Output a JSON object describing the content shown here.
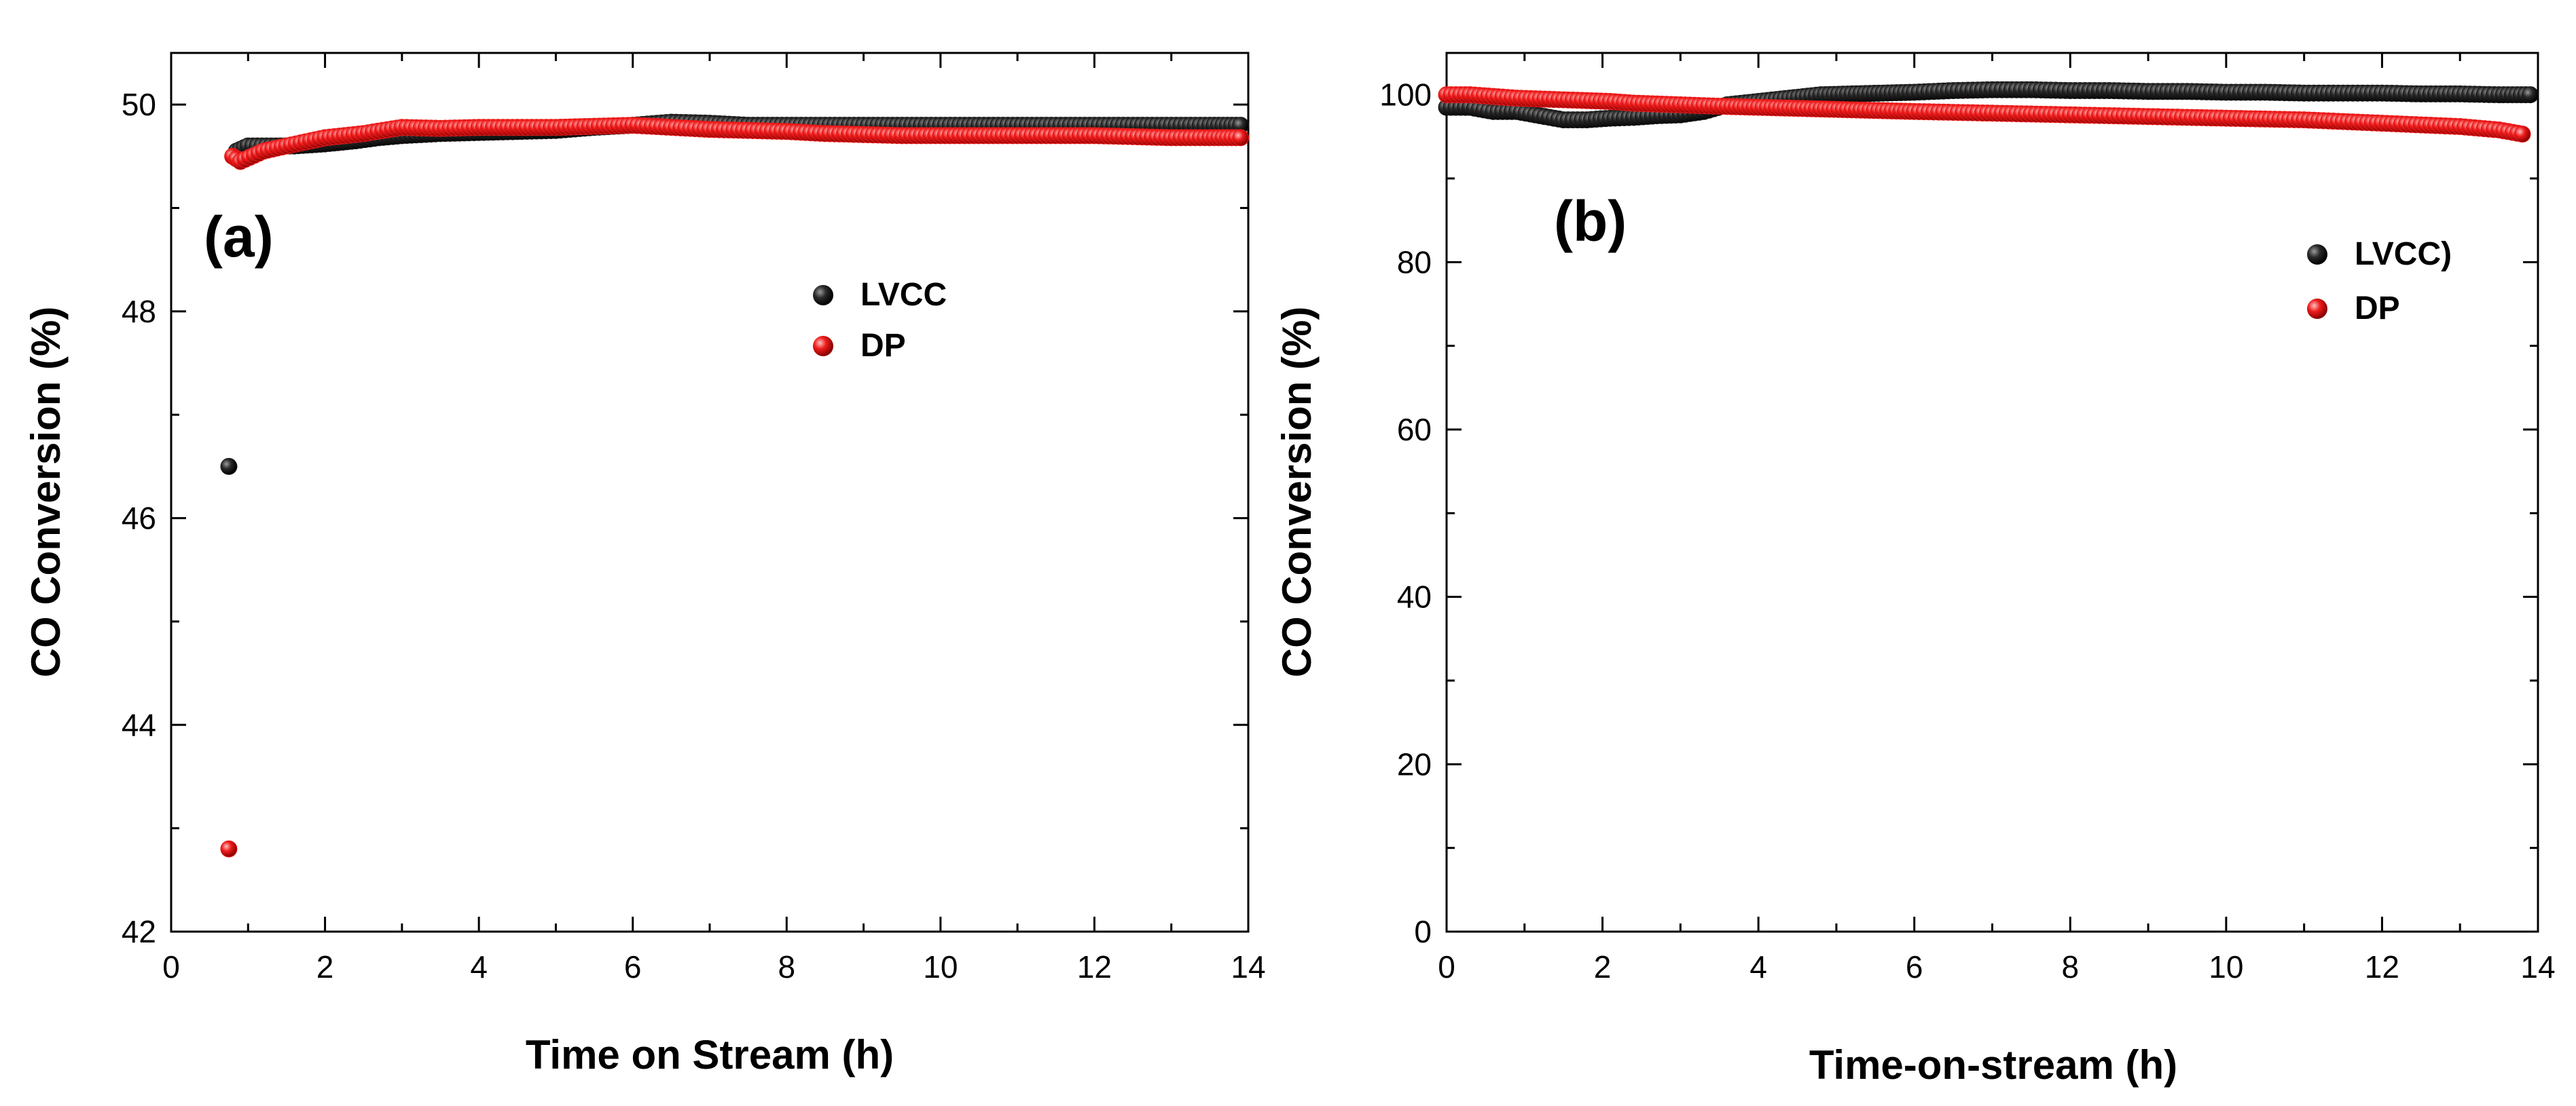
{
  "chart_data": [
    {
      "type": "scatter",
      "panel_label": "(a)",
      "xlabel": "Time on Stream (h)",
      "ylabel": "CO Conversion (%)",
      "xlim": [
        0,
        14
      ],
      "ylim": [
        42,
        50.5
      ],
      "x_ticks": [
        0,
        2,
        4,
        6,
        8,
        10,
        12,
        14
      ],
      "y_ticks": [
        42,
        44,
        46,
        48,
        50
      ],
      "legend": [
        "LVCC",
        "DP"
      ],
      "legend_position": "upper-right-of-center",
      "series": [
        {
          "name": "LVCC",
          "color": "#1a1a1a",
          "points": [
            [
              0.75,
              46.5
            ],
            [
              0.85,
              49.55
            ],
            [
              1.0,
              49.6
            ],
            [
              1.3,
              49.6
            ],
            [
              1.6,
              49.6
            ],
            [
              2.0,
              49.62
            ],
            [
              2.4,
              49.65
            ],
            [
              2.7,
              49.68
            ],
            [
              3.0,
              49.7
            ],
            [
              3.5,
              49.72
            ],
            [
              4.0,
              49.73
            ],
            [
              4.5,
              49.74
            ],
            [
              5.0,
              49.75
            ],
            [
              5.5,
              49.78
            ],
            [
              6.0,
              49.8
            ],
            [
              6.5,
              49.83
            ],
            [
              7.0,
              49.82
            ],
            [
              7.5,
              49.8
            ],
            [
              8.0,
              49.8
            ],
            [
              8.5,
              49.8
            ],
            [
              9.0,
              49.8
            ],
            [
              9.5,
              49.8
            ],
            [
              10.0,
              49.8
            ],
            [
              10.5,
              49.8
            ],
            [
              11.0,
              49.8
            ],
            [
              11.5,
              49.8
            ],
            [
              12.0,
              49.8
            ],
            [
              12.5,
              49.8
            ],
            [
              13.0,
              49.8
            ],
            [
              13.5,
              49.8
            ],
            [
              13.9,
              49.8
            ]
          ]
        },
        {
          "name": "DP",
          "color": "#ee1c1c",
          "points": [
            [
              0.75,
              42.8
            ],
            [
              0.8,
              49.5
            ],
            [
              0.9,
              49.45
            ],
            [
              1.2,
              49.55
            ],
            [
              1.5,
              49.6
            ],
            [
              2.0,
              49.68
            ],
            [
              2.5,
              49.72
            ],
            [
              3.0,
              49.78
            ],
            [
              3.5,
              49.77
            ],
            [
              4.0,
              49.78
            ],
            [
              4.5,
              49.78
            ],
            [
              5.0,
              49.78
            ],
            [
              5.5,
              49.79
            ],
            [
              6.0,
              49.8
            ],
            [
              6.5,
              49.78
            ],
            [
              7.0,
              49.76
            ],
            [
              7.5,
              49.75
            ],
            [
              8.0,
              49.74
            ],
            [
              8.5,
              49.72
            ],
            [
              9.0,
              49.71
            ],
            [
              9.5,
              49.7
            ],
            [
              10.0,
              49.7
            ],
            [
              10.5,
              49.7
            ],
            [
              11.0,
              49.7
            ],
            [
              11.5,
              49.7
            ],
            [
              12.0,
              49.7
            ],
            [
              12.5,
              49.69
            ],
            [
              13.0,
              49.68
            ],
            [
              13.5,
              49.68
            ],
            [
              13.9,
              49.68
            ]
          ]
        }
      ]
    },
    {
      "type": "scatter",
      "panel_label": "(b)",
      "xlabel": "Time-on-stream (h)",
      "ylabel": "CO Conversion (%)",
      "xlim": [
        0,
        14
      ],
      "ylim": [
        0,
        105
      ],
      "x_ticks": [
        0,
        2,
        4,
        6,
        8,
        10,
        12,
        14
      ],
      "y_ticks": [
        0,
        20,
        40,
        60,
        80,
        100
      ],
      "legend": [
        "LVCC)",
        "DP"
      ],
      "legend_position": "upper-right",
      "series": [
        {
          "name": "LVCC)",
          "color": "#1a1a1a",
          "points": [
            [
              0.0,
              98.5
            ],
            [
              0.3,
              98.5
            ],
            [
              0.6,
              98.0
            ],
            [
              0.9,
              98.0
            ],
            [
              1.2,
              97.5
            ],
            [
              1.5,
              97.0
            ],
            [
              1.8,
              97.0
            ],
            [
              2.1,
              97.2
            ],
            [
              2.4,
              97.3
            ],
            [
              2.7,
              97.5
            ],
            [
              3.0,
              97.6
            ],
            [
              3.3,
              98.0
            ],
            [
              3.6,
              98.8
            ],
            [
              4.0,
              99.2
            ],
            [
              4.4,
              99.6
            ],
            [
              4.8,
              100.0
            ],
            [
              5.2,
              100.1
            ],
            [
              5.6,
              100.2
            ],
            [
              6.0,
              100.3
            ],
            [
              6.5,
              100.5
            ],
            [
              7.0,
              100.6
            ],
            [
              7.5,
              100.6
            ],
            [
              8.0,
              100.5
            ],
            [
              8.5,
              100.5
            ],
            [
              9.0,
              100.4
            ],
            [
              9.5,
              100.4
            ],
            [
              10.0,
              100.3
            ],
            [
              10.5,
              100.3
            ],
            [
              11.0,
              100.2
            ],
            [
              11.5,
              100.2
            ],
            [
              12.0,
              100.2
            ],
            [
              12.5,
              100.1
            ],
            [
              13.0,
              100.1
            ],
            [
              13.5,
              100.0
            ],
            [
              13.9,
              100.0
            ]
          ]
        },
        {
          "name": "DP",
          "color": "#ee1c1c",
          "points": [
            [
              0.0,
              100.0
            ],
            [
              0.3,
              100.0
            ],
            [
              0.6,
              99.8
            ],
            [
              0.9,
              99.6
            ],
            [
              1.2,
              99.5
            ],
            [
              1.5,
              99.4
            ],
            [
              1.8,
              99.3
            ],
            [
              2.1,
              99.2
            ],
            [
              2.4,
              99.0
            ],
            [
              2.7,
              98.9
            ],
            [
              3.0,
              98.8
            ],
            [
              3.3,
              98.7
            ],
            [
              3.6,
              98.6
            ],
            [
              4.0,
              98.5
            ],
            [
              4.4,
              98.4
            ],
            [
              4.8,
              98.3
            ],
            [
              5.2,
              98.2
            ],
            [
              5.6,
              98.1
            ],
            [
              6.0,
              98.0
            ],
            [
              6.5,
              97.9
            ],
            [
              7.0,
              97.8
            ],
            [
              7.5,
              97.7
            ],
            [
              8.0,
              97.6
            ],
            [
              8.5,
              97.5
            ],
            [
              9.0,
              97.4
            ],
            [
              9.5,
              97.3
            ],
            [
              10.0,
              97.2
            ],
            [
              10.5,
              97.1
            ],
            [
              11.0,
              97.0
            ],
            [
              11.5,
              96.8
            ],
            [
              12.0,
              96.6
            ],
            [
              12.5,
              96.4
            ],
            [
              13.0,
              96.2
            ],
            [
              13.5,
              95.8
            ],
            [
              13.8,
              95.3
            ]
          ]
        }
      ]
    }
  ]
}
